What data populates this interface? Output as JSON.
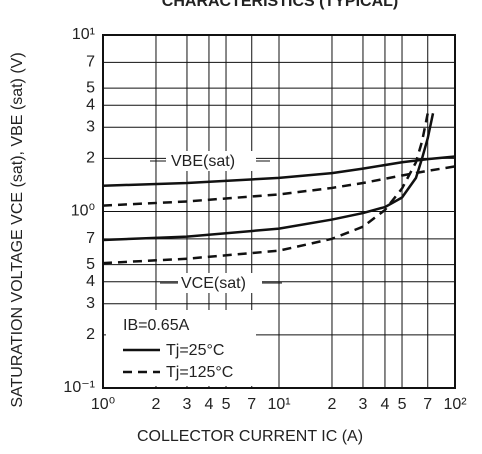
{
  "chart_data": {
    "type": "line",
    "title": "CHARACTERISTICS (TYPICAL)",
    "xlabel": "COLLECTOR CURRENT   IC (A)",
    "ylabel": "SATURATION VOLTAGE   VCE (sat), VBE (sat) (V)",
    "log_x": true,
    "log_y": true,
    "grid": true,
    "xlim": [
      1,
      100
    ],
    "ylim": [
      0.1,
      10
    ],
    "xticks": [
      {
        "value": 1,
        "label": "10⁰"
      },
      2,
      3,
      4,
      5,
      7,
      {
        "value": 10,
        "label": "10¹"
      },
      {
        "value": 20,
        "label": "2"
      },
      {
        "value": 30,
        "label": "3"
      },
      {
        "value": 40,
        "label": "4"
      },
      {
        "value": 50,
        "label": "5"
      },
      {
        "value": 70,
        "label": "7"
      },
      {
        "value": 100,
        "label": "10²"
      }
    ],
    "yticks": [
      {
        "value": 0.1,
        "label": "10⁻¹"
      },
      {
        "value": 0.2,
        "label": "2"
      },
      {
        "value": 0.3,
        "label": "3"
      },
      {
        "value": 0.4,
        "label": "4"
      },
      {
        "value": 0.5,
        "label": "5"
      },
      {
        "value": 0.7,
        "label": "7"
      },
      {
        "value": 1,
        "label": "10⁰"
      },
      2,
      3,
      4,
      5,
      7,
      {
        "value": 10,
        "label": "10¹"
      }
    ],
    "annotations": [
      "VBE(sat)",
      "VCE(sat)",
      "IB=0.65A"
    ],
    "series": [
      {
        "name": "Tj=25°C",
        "color": "#111111",
        "dashed": false,
        "curves": [
          {
            "x": [
              1,
              3,
              10,
              20,
              30,
              50,
              70,
              100
            ],
            "values": [
              1.4,
              1.45,
              1.55,
              1.65,
              1.75,
              1.9,
              1.98,
              2.05
            ]
          },
          {
            "x": [
              1,
              3,
              10,
              20,
              30,
              40,
              50,
              60,
              65,
              70,
              75
            ],
            "values": [
              0.69,
              0.72,
              0.8,
              0.9,
              0.98,
              1.06,
              1.2,
              1.55,
              2.0,
              2.6,
              3.6
            ]
          }
        ]
      },
      {
        "name": "Tj=125°C",
        "color": "#111111",
        "dashed": true,
        "curves": [
          {
            "x": [
              1,
              3,
              10,
              20,
              30,
              50,
              70,
              100
            ],
            "values": [
              1.08,
              1.14,
              1.25,
              1.36,
              1.45,
              1.6,
              1.7,
              1.8
            ]
          },
          {
            "x": [
              1,
              3,
              10,
              20,
              30,
              40,
              50,
              60,
              65,
              70
            ],
            "values": [
              0.51,
              0.54,
              0.6,
              0.7,
              0.82,
              1.02,
              1.35,
              1.9,
              2.5,
              3.6
            ]
          }
        ]
      }
    ]
  }
}
